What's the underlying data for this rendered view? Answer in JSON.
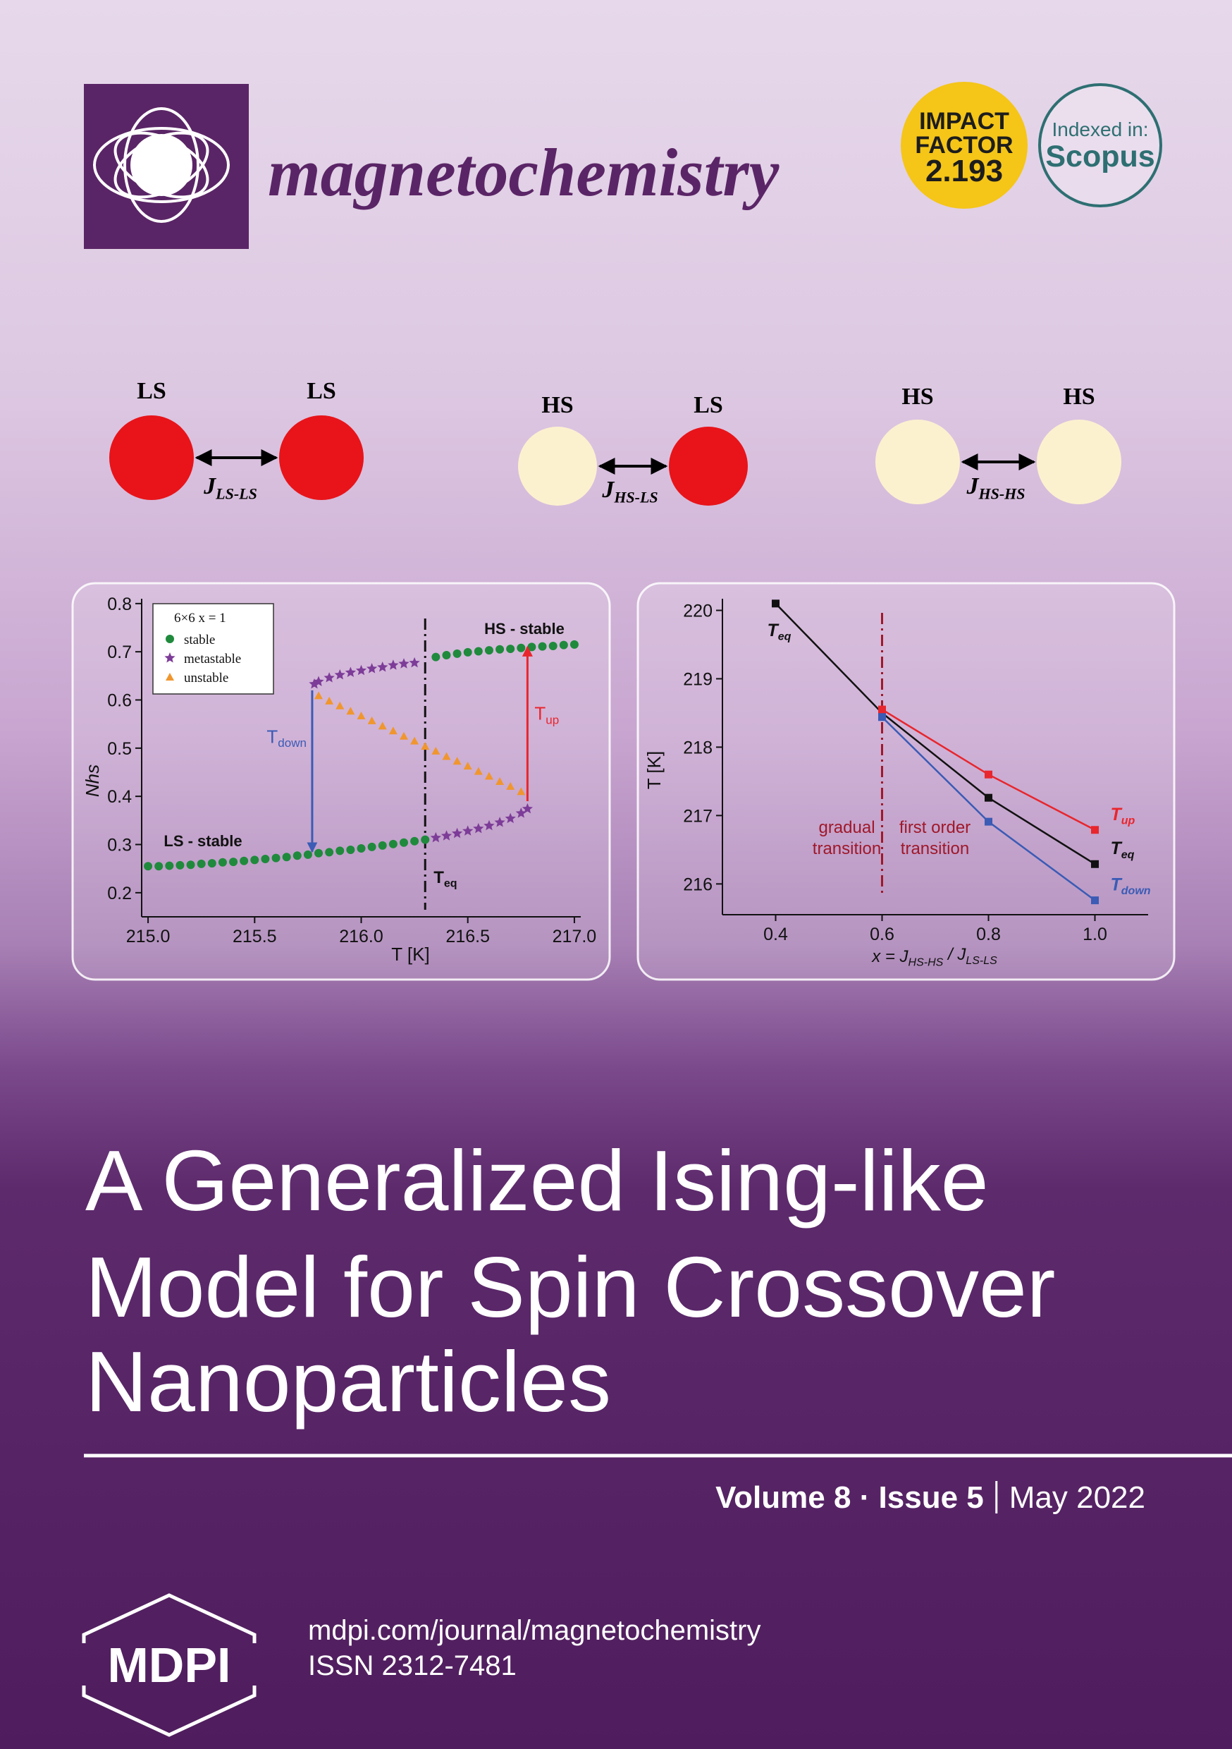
{
  "header": {
    "journal": "magnetochemistry",
    "impact_factor": {
      "line1": "IMPACT",
      "line2": "FACTOR",
      "value": "2.193"
    },
    "indexed": {
      "label": "Indexed in:",
      "name": "Scopus"
    }
  },
  "state_colors": {
    "LS": "#e8141a",
    "HS": "#fcf1cf"
  },
  "pairs": [
    {
      "left": "LS",
      "right": "LS",
      "coupling": "J",
      "sub": "LS-LS"
    },
    {
      "left": "HS",
      "right": "LS",
      "coupling": "J",
      "sub": "HS-LS"
    },
    {
      "left": "HS",
      "right": "HS",
      "coupling": "J",
      "sub": "HS-HS"
    }
  ],
  "chart_data": [
    {
      "type": "scatter",
      "x_label": "T [K]",
      "y_label": "Nhs",
      "xlim": [
        214.97,
        217.03
      ],
      "xticks": [
        {
          "value": 215,
          "label": "215.0"
        },
        215.5,
        {
          "value": 216,
          "label": "216.0"
        },
        216.5,
        {
          "value": 217,
          "label": "217.0"
        }
      ],
      "ylim": [
        0.15,
        0.81
      ],
      "yticks": [
        0.2,
        0.3,
        0.4,
        0.5,
        0.6,
        0.7,
        0.8
      ],
      "legend": "upper left",
      "legend_title": "6×6  x = 1",
      "series": [
        {
          "name": "stable",
          "color": "#1f8a3c",
          "marker": "circle",
          "x": [
            215.0,
            215.05,
            215.1,
            215.15,
            215.2,
            215.25,
            215.3,
            215.35,
            215.4,
            215.45,
            215.5,
            215.55,
            215.6,
            215.65,
            215.7,
            215.75,
            215.8,
            215.85,
            215.9,
            215.95,
            216.0,
            216.05,
            216.1,
            216.15,
            216.2,
            216.25,
            216.3,
            216.35,
            216.4,
            216.45,
            216.5,
            216.55,
            216.6,
            216.65,
            216.7,
            216.75,
            216.8,
            216.85,
            216.9,
            216.95,
            217.0
          ],
          "values": [
            0.255,
            0.255,
            0.256,
            0.257,
            0.258,
            0.26,
            0.261,
            0.263,
            0.264,
            0.266,
            0.268,
            0.27,
            0.272,
            0.274,
            0.277,
            0.279,
            0.282,
            0.284,
            0.287,
            0.289,
            0.292,
            0.295,
            0.298,
            0.301,
            0.304,
            0.307,
            0.31,
            0.689,
            0.693,
            0.696,
            0.699,
            0.701,
            0.703,
            0.705,
            0.706,
            0.708,
            0.71,
            0.711,
            0.712,
            0.714,
            0.715
          ]
        },
        {
          "name": "metastable",
          "color": "#7d3c98",
          "marker": "star",
          "x": [
            215.78,
            215.8,
            215.85,
            215.9,
            215.95,
            216.0,
            216.05,
            216.1,
            216.15,
            216.2,
            216.25,
            216.35,
            216.4,
            216.45,
            216.5,
            216.55,
            216.6,
            216.65,
            216.7,
            216.75,
            216.78
          ],
          "values": [
            0.633,
            0.638,
            0.646,
            0.652,
            0.657,
            0.661,
            0.665,
            0.668,
            0.672,
            0.675,
            0.677,
            0.314,
            0.318,
            0.323,
            0.328,
            0.333,
            0.339,
            0.346,
            0.354,
            0.365,
            0.374
          ]
        },
        {
          "name": "unstable",
          "color": "#f0962e",
          "marker": "triangle",
          "x": [
            215.8,
            215.85,
            215.9,
            215.95,
            216.0,
            216.05,
            216.1,
            216.15,
            216.2,
            216.25,
            216.3,
            216.35,
            216.4,
            216.45,
            216.5,
            216.55,
            216.6,
            216.65,
            216.7,
            216.75
          ],
          "values": [
            0.609,
            0.598,
            0.588,
            0.577,
            0.567,
            0.557,
            0.546,
            0.536,
            0.525,
            0.515,
            0.504,
            0.494,
            0.483,
            0.473,
            0.463,
            0.452,
            0.442,
            0.431,
            0.421,
            0.41
          ]
        }
      ],
      "markers": [
        {
          "x": 216.3,
          "text": "T",
          "sub": "eq",
          "color": "#111111"
        }
      ],
      "arrows": [
        {
          "text": "T",
          "sub": "down",
          "color": "#3b5bb5",
          "x": 215.77,
          "from": 0.62,
          "to": 0.285
        },
        {
          "text": "T",
          "sub": "up",
          "color": "#e8262d",
          "x": 216.78,
          "from": 0.39,
          "to": 0.71
        }
      ],
      "annotations": [
        "HS - stable",
        "LS - stable"
      ]
    },
    {
      "type": "line",
      "x_label": [
        "x = J",
        "HS-HS",
        " / J",
        "LS-LS"
      ],
      "y_label": "T [K]",
      "xlim": [
        0.3,
        1.1
      ],
      "xticks": [
        0.4,
        0.6,
        0.8,
        {
          "value": 1,
          "label": "1.0"
        }
      ],
      "ylim": [
        215.55,
        220.17
      ],
      "yticks": [
        216,
        217,
        218,
        219,
        220
      ],
      "series": [
        {
          "name": "T",
          "sub": "eq",
          "color": "#111111",
          "x": [
            0.4,
            0.6,
            0.8,
            1.0
          ],
          "values": [
            220.1,
            218.5,
            217.26,
            216.29
          ]
        },
        {
          "name": "T",
          "sub": "up",
          "color": "#e8262d",
          "x": [
            0.6,
            0.8,
            1.0
          ],
          "values": [
            218.55,
            217.6,
            216.79
          ]
        },
        {
          "name": "T",
          "sub": "down",
          "color": "#3b5bb5",
          "x": [
            0.6,
            0.8,
            1.0
          ],
          "values": [
            218.44,
            216.91,
            215.76
          ]
        }
      ],
      "markers": [
        {
          "x": 0.6,
          "color": "#a0182a"
        }
      ],
      "annotations": [
        [
          "gradual",
          "transition"
        ],
        [
          "first order",
          "transition"
        ]
      ]
    }
  ],
  "title": [
    "A Generalized Ising-like",
    "Model for Spin Crossover",
    "Nanoparticles"
  ],
  "issue": {
    "volume_issue": "Volume 8 · Issue 5",
    "date": "May 2022"
  },
  "footer": {
    "publisher": "MDPI",
    "url": "mdpi.com/journal/magnetochemistry",
    "issn": "ISSN 2312-7481"
  }
}
